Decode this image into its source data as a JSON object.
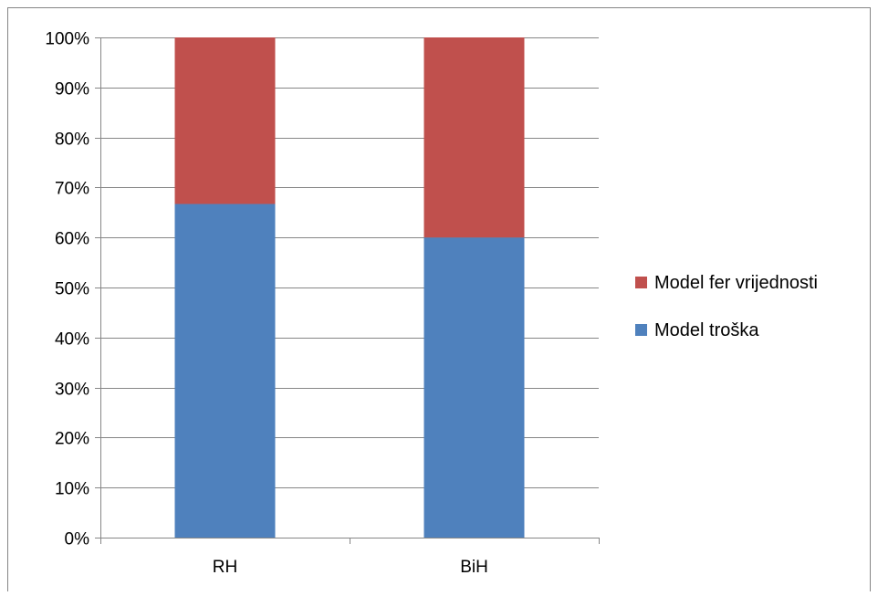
{
  "chart_data": {
    "type": "bar",
    "stacked": "percent",
    "categories": [
      "RH",
      "BiH"
    ],
    "series": [
      {
        "name": "Model troška",
        "values": [
          66.7,
          60.0
        ],
        "color": "#4F81BD"
      },
      {
        "name": "Model fer vrijednosti",
        "values": [
          33.3,
          40.0
        ],
        "color": "#C0504D"
      }
    ],
    "ylim": [
      0,
      100
    ],
    "yticks": [
      "0%",
      "10%",
      "20%",
      "30%",
      "40%",
      "50%",
      "60%",
      "70%",
      "80%",
      "90%",
      "100%"
    ],
    "grid": true,
    "legend": "right",
    "legend_order": [
      "Model fer vrijednosti",
      "Model troška"
    ]
  }
}
